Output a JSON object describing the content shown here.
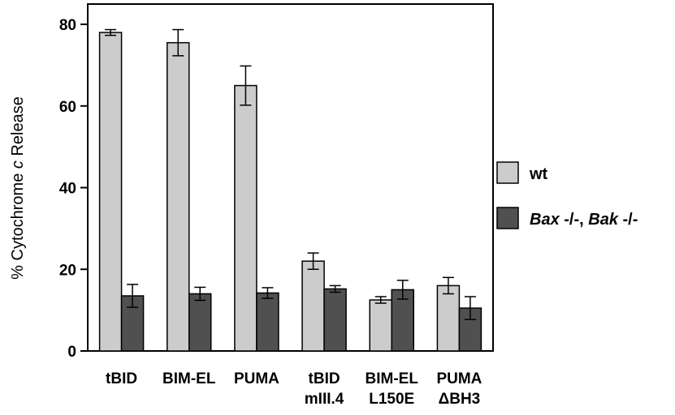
{
  "chart_data": {
    "type": "bar",
    "ylabel_parts": [
      "% Cytochrome ",
      "c",
      " Release"
    ],
    "ylim": [
      0,
      80
    ],
    "yticks": [
      0,
      20,
      40,
      60,
      80
    ],
    "categories": [
      [
        "tBID"
      ],
      [
        "BIM-EL"
      ],
      [
        "PUMA"
      ],
      [
        "tBID",
        "mIII.4"
      ],
      [
        "BIM-EL",
        "L150E"
      ],
      [
        "PUMA",
        "ΔBH3"
      ]
    ],
    "series": [
      {
        "name": "wt",
        "color": "#cccccc",
        "values": [
          78,
          75.5,
          65,
          22,
          12.5,
          16
        ],
        "errors": [
          0.7,
          3.2,
          4.8,
          2,
          0.8,
          2
        ]
      },
      {
        "name": "Bax -/-, Bak -/-",
        "name_parts": [
          "Bax",
          " -/-, ",
          "Bak",
          " -/-"
        ],
        "color": "#505050",
        "values": [
          13.5,
          14,
          14.2,
          15.2,
          15,
          10.5
        ],
        "errors": [
          2.8,
          1.6,
          1.3,
          0.8,
          2.3,
          2.8
        ]
      }
    ],
    "grid": false,
    "legend_position": "right"
  }
}
